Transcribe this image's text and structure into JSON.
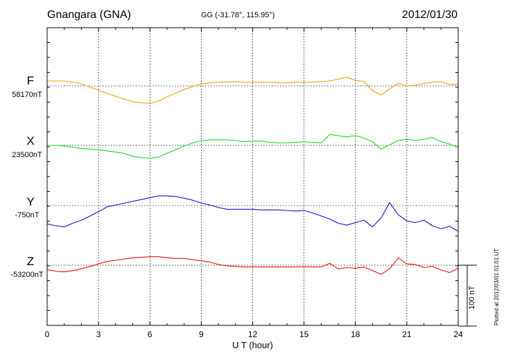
{
  "header": {
    "station": "Gnangara (GNA)",
    "coords": "GG (-31.78°, 115.95°)",
    "date": "2012/01/30"
  },
  "plotted_note": "Plotted at 2012/03/01 01:01 UT",
  "scale_label": "100 nT",
  "colors": {
    "F": "#f0a000",
    "X": "#18d818",
    "Y": "#1010d0",
    "Z": "#e01010"
  },
  "chart_data": {
    "type": "line",
    "xlabel": "U T (hour)",
    "xlim": [
      0,
      24
    ],
    "xticks": [
      0,
      3,
      6,
      9,
      12,
      15,
      18,
      21,
      24
    ],
    "scale_bar_nT": 100,
    "series": [
      {
        "name": "F",
        "baseline_label": "58170nT",
        "x": [
          0,
          0.5,
          1,
          1.5,
          2,
          2.5,
          3,
          3.5,
          4,
          4.5,
          5,
          5.5,
          6,
          6.5,
          7,
          7.5,
          8,
          8.5,
          9,
          9.5,
          10,
          10.5,
          11,
          11.5,
          12,
          12.5,
          13,
          13.5,
          14,
          14.5,
          15,
          15.5,
          16,
          16.5,
          17,
          17.5,
          18,
          18.5,
          19,
          19.5,
          20,
          20.5,
          21,
          21.5,
          22,
          22.5,
          23,
          23.5,
          24
        ],
        "y": [
          8,
          8,
          8,
          6,
          3,
          -2,
          -7,
          -12,
          -17,
          -22,
          -26,
          -28,
          -29,
          -25,
          -18,
          -12,
          -6,
          -1,
          3,
          5,
          6,
          6,
          7,
          6,
          6,
          6,
          6,
          5,
          5,
          6,
          6,
          6,
          7,
          8,
          11,
          14,
          9,
          7,
          -8,
          -15,
          -5,
          4,
          0,
          1,
          4,
          6,
          7,
          2,
          3
        ]
      },
      {
        "name": "X",
        "baseline_label": "23500nT",
        "x": [
          0,
          0.5,
          1,
          1.5,
          2,
          2.5,
          3,
          3.5,
          4,
          4.5,
          5,
          5.5,
          6,
          6.5,
          7,
          7.5,
          8,
          8.5,
          9,
          9.5,
          10,
          10.5,
          11,
          11.5,
          12,
          12.5,
          13,
          13.5,
          14,
          14.5,
          15,
          15.5,
          16,
          16.5,
          17,
          17.5,
          18,
          18.5,
          19,
          19.5,
          20,
          20.5,
          21,
          21.5,
          22,
          22.5,
          23,
          23.5,
          24
        ],
        "y": [
          0,
          0,
          -1,
          -3,
          -5,
          -6,
          -7,
          -9,
          -11,
          -13,
          -18,
          -20,
          -21,
          -19,
          -13,
          -7,
          -1,
          4,
          8,
          9,
          9,
          9,
          8,
          6,
          7,
          7,
          5,
          4,
          4,
          5,
          6,
          5,
          4,
          18,
          16,
          14,
          16,
          12,
          6,
          -6,
          1,
          8,
          10,
          8,
          10,
          13,
          6,
          2,
          -3
        ]
      },
      {
        "name": "Y",
        "baseline_label": "-750nT",
        "x": [
          0,
          0.5,
          1,
          1.5,
          2,
          2.5,
          3,
          3.5,
          4,
          4.5,
          5,
          5.5,
          6,
          6.5,
          7,
          7.5,
          8,
          8.5,
          9,
          9.5,
          10,
          10.5,
          11,
          11.5,
          12,
          12.5,
          13,
          13.5,
          14,
          14.5,
          15,
          15.5,
          16,
          16.5,
          17,
          17.5,
          18,
          18.5,
          19,
          19.5,
          20,
          20.5,
          21,
          21.5,
          22,
          22.5,
          23,
          23.5,
          24
        ],
        "y": [
          -30,
          -33,
          -35,
          -29,
          -24,
          -17,
          -10,
          -2,
          1,
          4,
          7,
          10,
          13,
          16,
          16,
          15,
          12,
          9,
          4,
          1,
          -3,
          -6,
          -6,
          -6,
          -6,
          -7,
          -7,
          -7,
          -8,
          -9,
          -8,
          -12,
          -17,
          -22,
          -29,
          -32,
          -28,
          -24,
          -35,
          -20,
          5,
          -15,
          -25,
          -28,
          -24,
          -33,
          -38,
          -34,
          -42
        ]
      },
      {
        "name": "Z",
        "baseline_label": "-53200nT",
        "x": [
          0,
          0.5,
          1,
          1.5,
          2,
          2.5,
          3,
          3.5,
          4,
          4.5,
          5,
          5.5,
          6,
          6.5,
          7,
          7.5,
          8,
          8.5,
          9,
          9.5,
          10,
          10.5,
          11,
          11.5,
          12,
          12.5,
          13,
          13.5,
          14,
          14.5,
          15,
          15.5,
          16,
          16.5,
          17,
          17.5,
          18,
          18.5,
          19,
          19.5,
          20,
          20.5,
          21,
          21.5,
          22,
          22.5,
          23,
          23.5,
          24
        ],
        "y": [
          -7,
          -10,
          -11,
          -9,
          -6,
          -2,
          2,
          6,
          8,
          10,
          12,
          13,
          14,
          14,
          12,
          11,
          11,
          9,
          7,
          5,
          1,
          -1,
          -2,
          -3,
          -3,
          -3,
          -3,
          -3,
          -3,
          -3,
          -3,
          -3,
          -3,
          3,
          -6,
          -4,
          -5,
          -3,
          -9,
          -15,
          -6,
          12,
          2,
          1,
          -4,
          -2,
          -8,
          -12,
          -5
        ]
      }
    ]
  }
}
